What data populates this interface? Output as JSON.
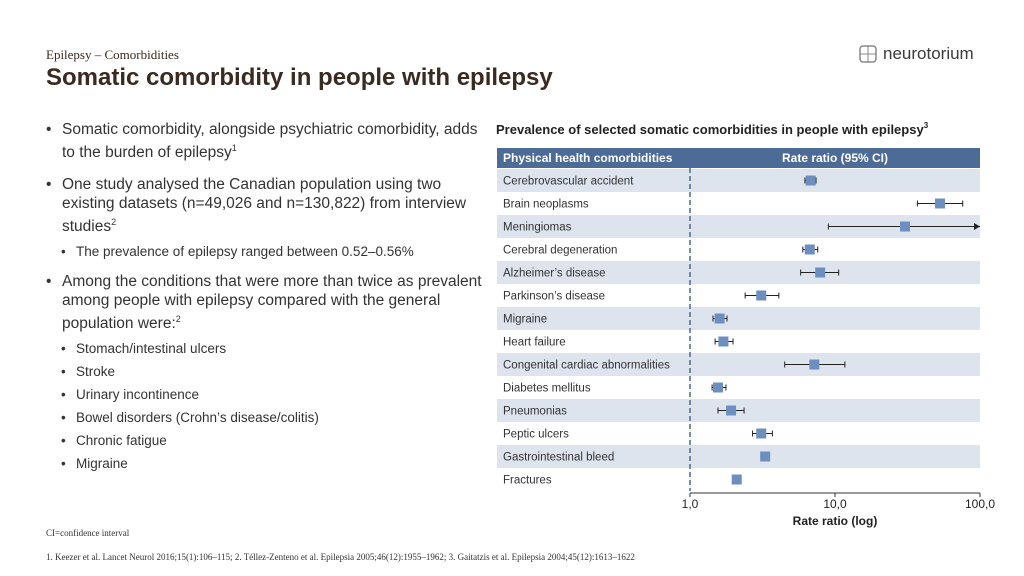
{
  "header": {
    "section": "Epilepsy – Comorbidities",
    "title": "Somatic comorbidity in people with epilepsy",
    "logo": "neurotorium"
  },
  "bullets": [
    {
      "text": "Somatic comorbidity, alongside psychiatric comorbidity, adds to the burden of epilepsy",
      "ref": "1",
      "sub": []
    },
    {
      "text": "One study analysed the Canadian population using two existing datasets (n=49,026 and n=130,822) from interview studies",
      "ref": "2",
      "sub": [
        "The prevalence of epilepsy ranged between 0.52–0.56%"
      ]
    },
    {
      "text": "Among the conditions that were more than twice as prevalent among people with epilepsy compared with the general population were:",
      "ref": "2",
      "sub": [
        "Stomach/intestinal ulcers",
        "Stroke",
        "Urinary incontinence",
        "Bowel disorders (Crohn’s disease/colitis)",
        "Chronic fatigue",
        "Migraine"
      ]
    }
  ],
  "footnote": "CI=confidence interval",
  "references": "1. Keezer et al. Lancet Neurol 2016;15(1):106–115; 2. Téllez-Zenteno et al. Epilepsia 2005;46(12):1955–1962; 3. Gaitatzis et al. Epilepsia 2004;45(12):1613–1622",
  "chart_data": {
    "type": "forest",
    "title": "Prevalence of selected somatic comorbidities in people with epilepsy",
    "title_ref": "3",
    "column_headers": [
      "Physical health comorbidities",
      "Rate ratio (95% CI)"
    ],
    "categories": [
      "Cerebrovascular accident",
      "Brain neoplasms",
      "Meningiomas",
      "Cerebral degeneration",
      "Alzheimer’s disease",
      "Parkinson’s disease",
      "Migraine",
      "Heart failure",
      "Congenital cardiac abnormalities",
      "Diabetes mellitus",
      "Pneumonias",
      "Peptic ulcers",
      "Gastrointestinal bleed",
      "Fractures"
    ],
    "values": [
      6.8,
      53,
      30.4,
      6.7,
      7.9,
      3.1,
      1.6,
      1.7,
      7.2,
      1.56,
      1.92,
      3.1,
      3.3,
      2.1
    ],
    "lower": [
      6.2,
      37,
      9.0,
      6.0,
      5.8,
      2.4,
      1.44,
      1.49,
      4.5,
      1.42,
      1.56,
      2.7,
      3.2,
      2.05
    ],
    "upper": [
      7.4,
      76,
      100,
      7.6,
      10.6,
      4.1,
      1.8,
      1.98,
      11.7,
      1.77,
      2.36,
      3.7,
      3.4,
      2.2
    ],
    "color": "#6d8fbf",
    "xlim": [
      1,
      100
    ],
    "xticks": [
      {
        "value": 1,
        "label": "1,0"
      },
      {
        "value": 10,
        "label": "10,0"
      },
      {
        "value": 100,
        "label": "100,0"
      }
    ],
    "xlabel": "Rate ratio (log)",
    "log_x": true
  }
}
